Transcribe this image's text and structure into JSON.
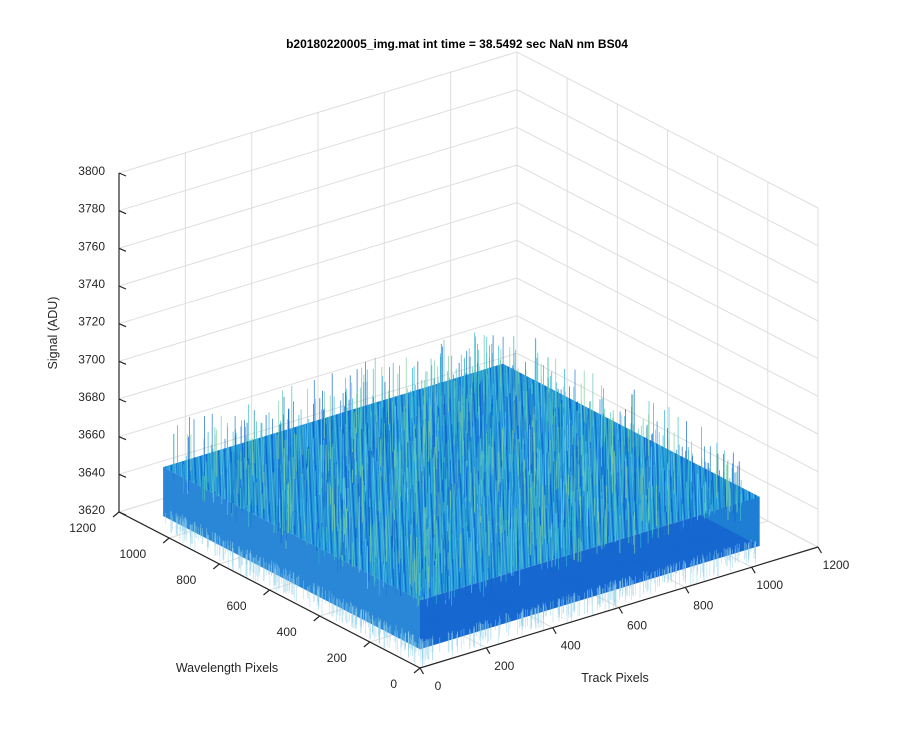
{
  "chart_data": {
    "type": "surface",
    "title": "b20180220005_img.mat int time = 38.5492 sec  NaN nm BS04",
    "xlabel": "Track Pixels",
    "ylabel": "Wavelength Pixels",
    "zlabel": "Signal (ADU)",
    "xlim": [
      0,
      1200
    ],
    "ylim": [
      0,
      1200
    ],
    "zlim": [
      3620,
      3800
    ],
    "xticks": [
      "0",
      "200",
      "400",
      "600",
      "800",
      "1000",
      "1200"
    ],
    "yticks": [
      "0",
      "200",
      "400",
      "600",
      "800",
      "1000",
      "1200"
    ],
    "zticks": [
      "3620",
      "3640",
      "3660",
      "3680",
      "3700",
      "3720",
      "3740",
      "3760",
      "3780",
      "3800"
    ],
    "grid": true,
    "surface": {
      "x_range": [
        0,
        1024
      ],
      "y_range": [
        0,
        1024
      ],
      "mean_signal": 3650,
      "noise_min": 3630,
      "noise_max": 3675,
      "colormap": "parula",
      "dominant_colors": [
        "#1f7fd4",
        "#25a6d6",
        "#0a5fce",
        "#6cc4b0"
      ]
    }
  }
}
